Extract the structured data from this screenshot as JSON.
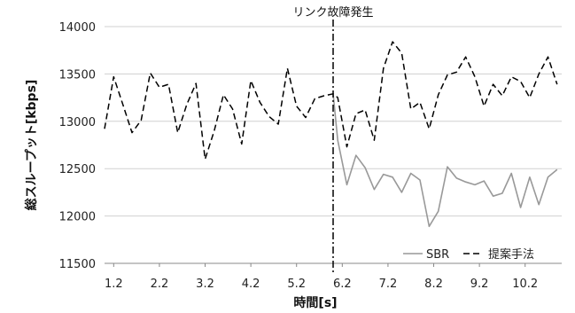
{
  "chart_data": {
    "type": "line",
    "title": "",
    "xlabel": "時間[s]",
    "ylabel": "総スループット[kbps]",
    "ylim": [
      11500,
      14000
    ],
    "yticks": [
      11500,
      12000,
      12500,
      13000,
      13500,
      14000
    ],
    "xticks": [
      "1.2",
      "2.2",
      "3.2",
      "4.2",
      "5.2",
      "6.2",
      "7.2",
      "8.2",
      "9.2",
      "10.2"
    ],
    "grid": "horizontal",
    "legend_position": "bottom-right",
    "annotation": {
      "label": "リンク故障発生",
      "x": 6.0
    },
    "series": [
      {
        "name": "SBR",
        "color": "#999999",
        "style": "solid",
        "x": [
          6.0,
          6.1,
          6.3,
          6.5,
          6.7,
          6.9,
          7.1,
          7.3,
          7.5,
          7.7,
          7.9,
          8.1,
          8.3,
          8.5,
          8.7,
          8.9,
          9.1,
          9.3,
          9.5,
          9.7,
          9.9,
          10.1,
          10.3,
          10.5,
          10.7,
          10.9
        ],
        "values": [
          13290,
          12800,
          12330,
          12640,
          12510,
          12280,
          12440,
          12410,
          12250,
          12450,
          12380,
          11890,
          12050,
          12520,
          12400,
          12360,
          12330,
          12370,
          12210,
          12240,
          12450,
          12090,
          12410,
          12120,
          12410,
          12490
        ]
      },
      {
        "name": "提案手法",
        "color": "#000000",
        "style": "dashed",
        "x": [
          1.0,
          1.2,
          1.4,
          1.6,
          1.8,
          2.0,
          2.2,
          2.4,
          2.6,
          2.8,
          3.0,
          3.2,
          3.4,
          3.6,
          3.8,
          4.0,
          4.2,
          4.4,
          4.6,
          4.8,
          5.0,
          5.2,
          5.4,
          5.6,
          5.8,
          6.0,
          6.1,
          6.3,
          6.5,
          6.7,
          6.9,
          7.1,
          7.3,
          7.5,
          7.7,
          7.9,
          8.1,
          8.3,
          8.5,
          8.7,
          8.9,
          9.1,
          9.3,
          9.5,
          9.7,
          9.9,
          10.1,
          10.3,
          10.5,
          10.7,
          10.9
        ],
        "values": [
          12920,
          13470,
          13180,
          12880,
          13010,
          13510,
          13360,
          13390,
          12880,
          13180,
          13400,
          12600,
          12900,
          13280,
          13130,
          12760,
          13430,
          13200,
          13050,
          12970,
          13560,
          13160,
          13040,
          13240,
          13270,
          13290,
          13250,
          12730,
          13080,
          13120,
          12800,
          13560,
          13840,
          13720,
          13130,
          13200,
          12920,
          13280,
          13490,
          13520,
          13680,
          13470,
          13160,
          13390,
          13270,
          13470,
          13420,
          13250,
          13500,
          13680,
          13390
        ]
      }
    ]
  }
}
